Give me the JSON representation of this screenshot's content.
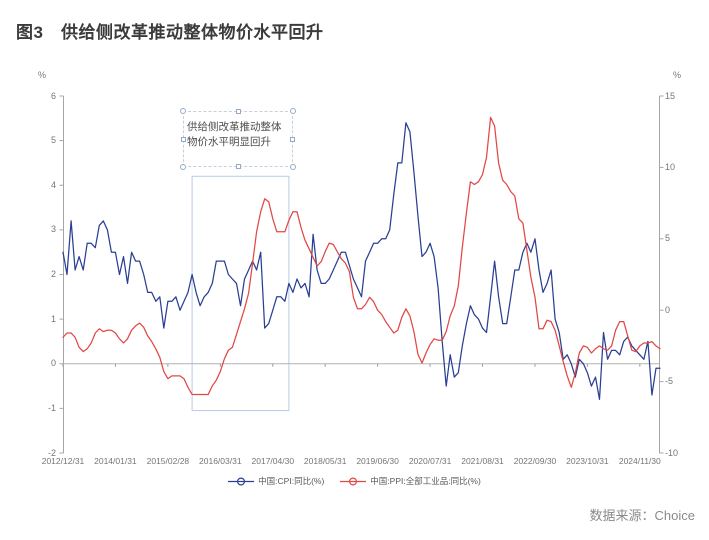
{
  "page": {
    "title": "图3　供给侧改革推动整体物价水平回升",
    "source": "数据来源：Choice"
  },
  "annotation": {
    "textbox_lines": [
      "供给侧改革推动整体",
      "物价水平明显回升"
    ],
    "highlight": {
      "from": "2015/08",
      "to": "2017/08",
      "top_value": 4.2,
      "bottom_value": -1.05
    }
  },
  "colors": {
    "cpi_line": "#2a3f93",
    "ppi_line": "#e04845",
    "axis_line": "#a6a6a6",
    "zero_line": "#b3b3b3",
    "tick_text": "#757575",
    "highlight_border": "#b7cce6"
  },
  "chart_data": {
    "type": "line",
    "title": "供给侧改革推动整体物价水平回升",
    "x_unit": "month",
    "x_start": "2012/12",
    "x_end": "2025/04",
    "x_tick_labels": [
      "2012/12/31",
      "2014/01/31",
      "2015/02/28",
      "2016/03/31",
      "2017/04/30",
      "2018/05/31",
      "2019/06/30",
      "2020/07/31",
      "2021/08/31",
      "2022/09/30",
      "2023/10/31",
      "2024/11/30"
    ],
    "x_tick_month_indices": [
      0,
      13,
      26,
      39,
      52,
      65,
      78,
      91,
      104,
      117,
      130,
      143
    ],
    "left_axis": {
      "label": "%",
      "min": -2,
      "max": 6,
      "ticks": [
        6,
        5,
        4,
        3,
        2,
        1,
        0,
        -1,
        -2
      ]
    },
    "right_axis": {
      "label": "%",
      "min": -10,
      "max": 15,
      "ticks": [
        15,
        10,
        5,
        0,
        -5,
        -10
      ]
    },
    "grid": "zero-line-only",
    "legend_position": "bottom-center",
    "series": [
      {
        "name": "中国:CPI:同比(%)",
        "axis": "left",
        "color": "#2a3f93",
        "values": [
          2.5,
          2.0,
          3.2,
          2.1,
          2.4,
          2.1,
          2.7,
          2.7,
          2.6,
          3.1,
          3.2,
          3.0,
          2.5,
          2.5,
          2.0,
          2.4,
          1.8,
          2.5,
          2.3,
          2.3,
          2.0,
          1.6,
          1.6,
          1.4,
          1.5,
          0.8,
          1.4,
          1.4,
          1.5,
          1.2,
          1.4,
          1.6,
          2.0,
          1.6,
          1.3,
          1.5,
          1.6,
          1.8,
          2.3,
          2.3,
          2.3,
          2.0,
          1.9,
          1.8,
          1.3,
          1.9,
          2.1,
          2.3,
          2.1,
          2.5,
          0.8,
          0.9,
          1.2,
          1.5,
          1.5,
          1.4,
          1.8,
          1.6,
          1.9,
          1.7,
          1.8,
          1.5,
          2.9,
          2.1,
          1.8,
          1.8,
          1.9,
          2.1,
          2.3,
          2.5,
          2.5,
          2.2,
          1.9,
          1.7,
          1.5,
          2.3,
          2.5,
          2.7,
          2.7,
          2.8,
          2.8,
          3.0,
          3.8,
          4.5,
          4.5,
          5.4,
          5.2,
          4.3,
          3.3,
          2.4,
          2.5,
          2.7,
          2.4,
          1.7,
          0.5,
          -0.5,
          0.2,
          -0.3,
          -0.2,
          0.4,
          0.9,
          1.3,
          1.1,
          1.0,
          0.8,
          0.7,
          1.5,
          2.3,
          1.5,
          0.9,
          0.9,
          1.5,
          2.1,
          2.1,
          2.5,
          2.7,
          2.5,
          2.8,
          2.1,
          1.6,
          1.8,
          2.1,
          1.0,
          0.7,
          0.1,
          0.2,
          0.0,
          -0.3,
          0.1,
          0.0,
          -0.2,
          -0.5,
          -0.3,
          -0.8,
          0.7,
          0.1,
          0.3,
          0.3,
          0.2,
          0.5,
          0.6,
          0.4,
          0.3,
          0.2,
          0.1,
          0.5,
          -0.7,
          -0.1,
          -0.1
        ]
      },
      {
        "name": "中国:PPI:全部工业品:同比(%)",
        "axis": "right",
        "color": "#e04845",
        "values": [
          -1.9,
          -1.6,
          -1.6,
          -1.9,
          -2.6,
          -2.9,
          -2.7,
          -2.3,
          -1.6,
          -1.3,
          -1.5,
          -1.4,
          -1.4,
          -1.6,
          -2.0,
          -2.3,
          -2.0,
          -1.4,
          -1.1,
          -0.9,
          -1.2,
          -1.8,
          -2.2,
          -2.7,
          -3.3,
          -4.3,
          -4.8,
          -4.6,
          -4.6,
          -4.6,
          -4.8,
          -5.4,
          -5.9,
          -5.9,
          -5.9,
          -5.9,
          -5.9,
          -5.3,
          -4.9,
          -4.3,
          -3.4,
          -2.8,
          -2.6,
          -1.7,
          -0.8,
          0.1,
          1.2,
          3.3,
          5.5,
          6.9,
          7.8,
          7.6,
          6.4,
          5.5,
          5.5,
          5.5,
          6.3,
          6.9,
          6.9,
          5.8,
          4.9,
          4.3,
          3.7,
          3.1,
          3.4,
          4.1,
          4.7,
          4.6,
          4.1,
          3.6,
          3.3,
          2.7,
          0.9,
          0.1,
          0.1,
          0.4,
          0.9,
          0.6,
          0.0,
          -0.3,
          -0.8,
          -1.2,
          -1.6,
          -1.4,
          -0.5,
          0.1,
          -0.4,
          -1.5,
          -3.1,
          -3.7,
          -3.0,
          -2.4,
          -2.0,
          -2.1,
          -2.1,
          -1.5,
          -0.4,
          0.3,
          1.7,
          4.4,
          6.8,
          9.0,
          8.8,
          9.0,
          9.5,
          10.7,
          13.5,
          12.9,
          10.3,
          9.1,
          8.8,
          8.3,
          8.0,
          6.4,
          6.1,
          4.2,
          2.3,
          0.9,
          -1.3,
          -1.3,
          -0.7,
          -0.8,
          -1.4,
          -2.5,
          -3.6,
          -4.6,
          -5.4,
          -4.4,
          -3.0,
          -2.5,
          -2.6,
          -3.0,
          -2.7,
          -2.5,
          -2.7,
          -2.8,
          -2.5,
          -1.4,
          -0.8,
          -0.8,
          -1.8,
          -2.8,
          -2.9,
          -2.5,
          -2.3,
          -2.3,
          -2.2,
          -2.5,
          -2.7
        ]
      }
    ]
  }
}
